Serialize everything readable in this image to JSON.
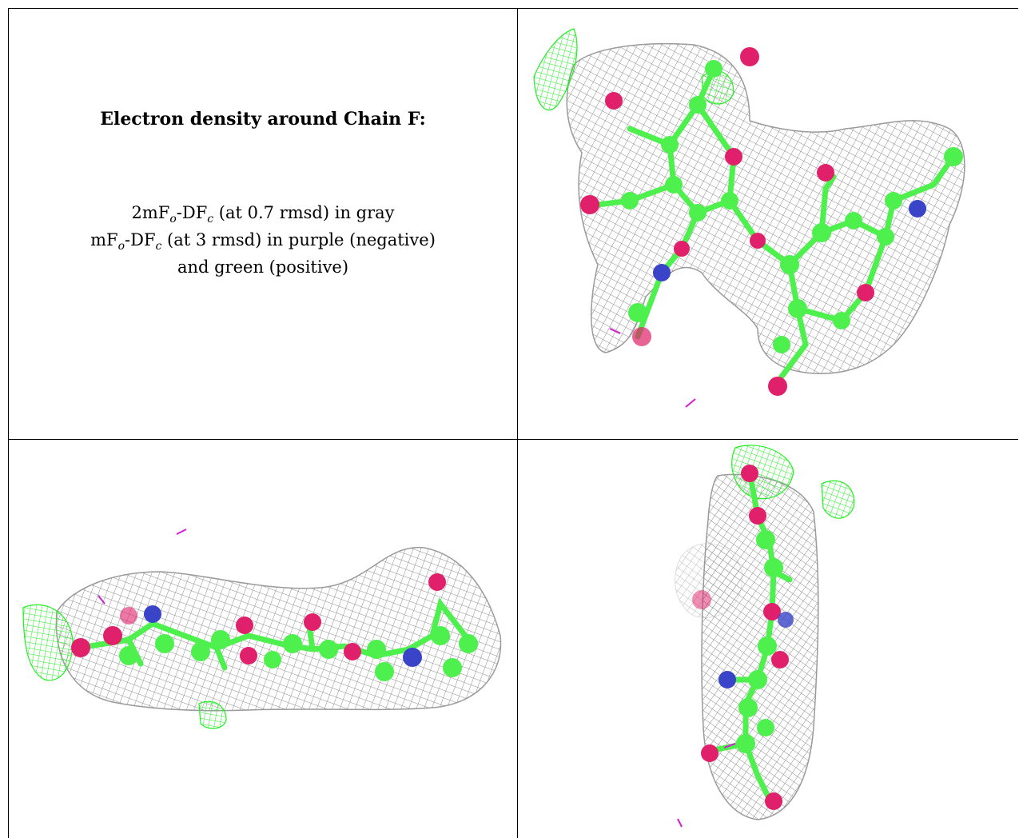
{
  "caption": {
    "title": "Electron density around Chain F:",
    "line1": {
      "prefix": "2mF",
      "sub_o": "o",
      "mid": "-DF",
      "sub_c": "c",
      "suffix": " (at 0.7 rmsd) in gray"
    },
    "line2": {
      "prefix": "mF",
      "sub_o": "o",
      "mid": "-DF",
      "sub_c": "c",
      "suffix": " (at 3 rmsd) in purple (negative)"
    },
    "line3": "and green (positive)"
  },
  "colors": {
    "mesh_2fofc": "#8c8c8c",
    "mesh_positive": "#22ee22",
    "mesh_negative": "#d020d0",
    "carbon": "#4ef04e",
    "oxygen": "#e0206a",
    "nitrogen": "#3a44c8"
  },
  "panels": [
    "density-view-front",
    "density-view-side",
    "density-view-end"
  ]
}
